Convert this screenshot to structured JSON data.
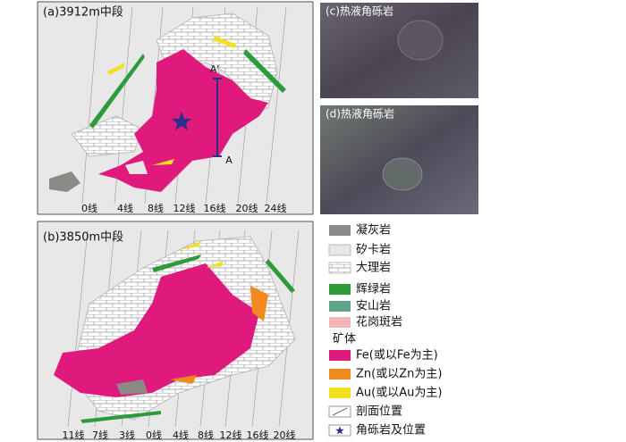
{
  "panels": [
    {
      "label": "(a)3912m中段",
      "lines": [
        "0线",
        "4线",
        "8线",
        "12线",
        "16线",
        "20线",
        "24线"
      ],
      "section": [
        "A'",
        "A"
      ]
    },
    {
      "label": "(b)3850m中段",
      "lines": [
        "11线",
        "7线",
        "3线",
        "0线",
        "4线",
        "8线",
        "12线",
        "16线",
        "20线"
      ]
    }
  ],
  "photos": [
    {
      "label": "(c)热液角砾岩"
    },
    {
      "label": "(d)热液角砾岩"
    }
  ],
  "legend": [
    "凝灰岩",
    "矽卡岩",
    "大理岩",
    "辉绿岩",
    "安山岩",
    "花岗斑岩",
    "矿体",
    "Fe(或以Fe为主)",
    "Zn(或以Zn为主)",
    "Au(或以Au为主)",
    "剖面位置",
    "角砾岩及位置"
  ]
}
